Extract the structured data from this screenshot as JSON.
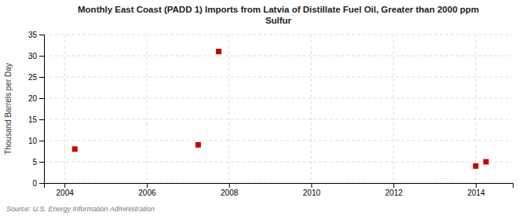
{
  "chart_data": {
    "type": "scatter",
    "title": "Monthly East Coast (PADD 1) Imports from Latvia of Distillate Fuel Oil, Greater than 2000 ppm\nSulfur",
    "y_label": "Thousand Barrels per Day",
    "annotations": [
      "Source: U.S. Energy Information Administration"
    ],
    "x": [
      2004.25,
      2007.25,
      2007.75,
      2014.0,
      2014.25
    ],
    "values": [
      8.0,
      9.0,
      31.0,
      4.0,
      5.0
    ],
    "color": "#cc0000",
    "marker": "square",
    "xlim": [
      2003.5,
      2014.9
    ],
    "ylim": [
      0,
      35
    ],
    "xticks": [
      2004,
      2006,
      2008,
      2010,
      2012,
      2014
    ],
    "yticks": [
      0,
      5,
      10,
      15,
      20,
      25,
      30,
      35
    ],
    "grid": true
  }
}
